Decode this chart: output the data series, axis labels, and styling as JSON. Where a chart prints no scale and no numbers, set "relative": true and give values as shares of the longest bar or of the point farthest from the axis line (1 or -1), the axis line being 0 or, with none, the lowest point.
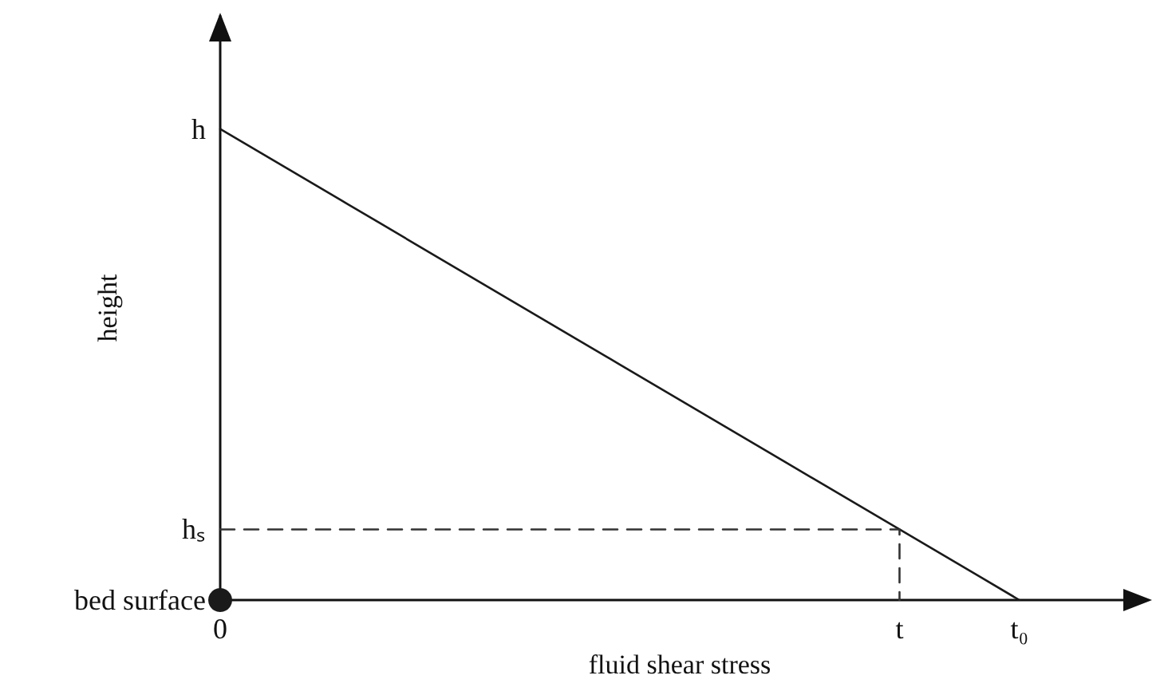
{
  "chart_data": {
    "type": "line",
    "relative": true,
    "xlabel": "fluid shear stress",
    "ylabel": "height",
    "categories": [
      "0",
      null,
      null,
      null,
      null,
      null,
      null,
      null,
      null,
      null,
      null,
      null,
      null,
      null,
      null,
      null,
      null,
      "t",
      null,
      null,
      "t₀",
      null,
      null,
      null
    ],
    "series": [
      {
        "color": "#1a1a1a",
        "values": [
          1,
          0.95,
          0.9,
          0.85,
          0.8,
          0.75,
          0.7,
          0.65,
          0.6,
          0.55,
          0.5,
          0.45,
          0.4,
          0.35,
          0.3,
          0.25,
          0.2,
          0.15,
          0.1,
          0.05,
          0,
          null,
          null,
          null
        ],
        "marker": "none",
        "line_style": "solid"
      },
      {
        "type": "step",
        "color": "#333333",
        "values": [
          0.15,
          0.15,
          0.15,
          0.15,
          0.15,
          0.15,
          0.15,
          0.15,
          0.15,
          0.15,
          0.15,
          0.15,
          0.15,
          0.15,
          0.15,
          0.15,
          0.15,
          0,
          null,
          null,
          null,
          null,
          null,
          null
        ],
        "marker": "none",
        "line_style": "dashed"
      },
      {
        "type": "scatter",
        "color": "#1a1a1a",
        "values": [
          0,
          null,
          null,
          null,
          null,
          null,
          null,
          null,
          null,
          null,
          null,
          null,
          null,
          null,
          null,
          null,
          null,
          null,
          null,
          null,
          null,
          null,
          null,
          null
        ],
        "marker": "circle"
      }
    ],
    "annotations": [
      {
        "text": "h",
        "x": "0",
        "y": 1
      },
      {
        "text": "hₛ",
        "x": "0",
        "y": 0.15
      },
      {
        "text": "bed surface",
        "x": "0",
        "y": 0
      }
    ]
  }
}
